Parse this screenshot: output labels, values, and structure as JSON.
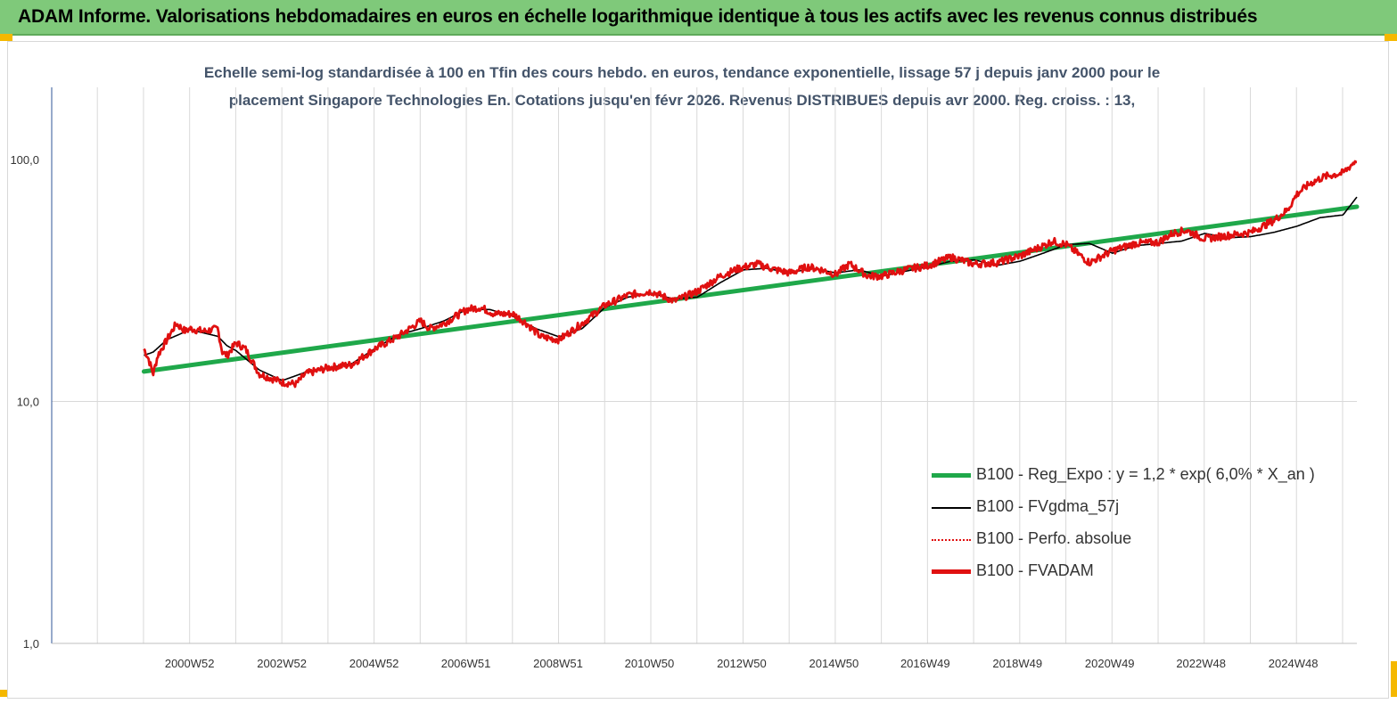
{
  "banner": {
    "title": "ADAM Informe. Valorisations hebdomadaires en euros en échelle logarithmique identique à tous les actifs avec les revenus connus distribués"
  },
  "chart_data": {
    "type": "line",
    "title": "",
    "subtitle_line1": "Echelle semi-log standardisée à 100 en Tfin des cours hebdo. en euros, tendance exponentielle, lissage 57 j depuis janv 2000 pour le",
    "subtitle_line2": "placement Singapore Technologies En. Cotations jusqu'en févr 2026. Revenus DISTRIBUES depuis avr 2000. Reg. croiss. : 13,",
    "y_scale": "log",
    "ylim": [
      1,
      200
    ],
    "y_ticks": [
      "1,0",
      "10,0",
      "100,0"
    ],
    "y_tick_values": [
      1,
      10,
      100
    ],
    "x_range": [
      1998.0,
      2026.3
    ],
    "x_ticks": [
      "2000W52",
      "2002W52",
      "2004W52",
      "2006W51",
      "2008W51",
      "2010W50",
      "2012W50",
      "2014W50",
      "2016W49",
      "2018W49",
      "2020W49",
      "2022W48",
      "2024W48"
    ],
    "x_tick_values": [
      2000.99,
      2002.99,
      2004.99,
      2006.98,
      2008.98,
      2010.96,
      2012.96,
      2014.96,
      2016.94,
      2018.94,
      2020.94,
      2022.92,
      2024.92
    ],
    "legend_position": "bottom-right",
    "grid": "vertical",
    "series": [
      {
        "name": "B100 - Reg_Expo : y = 1,2 * exp( 6,0% *  X_an )",
        "color": "#1fa84a",
        "style": "thick",
        "x": [
          2000.0,
          2026.3
        ],
        "y": [
          13.3,
          63.8
        ]
      },
      {
        "name": "B100 - FVgdma_57j",
        "color": "#000000",
        "style": "thin",
        "x": [
          2000.0,
          2000.2,
          2000.5,
          2001.0,
          2001.6,
          2001.8,
          2002.0,
          2002.5,
          2003.0,
          2003.5,
          2004.0,
          2004.5,
          2005.0,
          2005.5,
          2006.0,
          2006.5,
          2007.0,
          2007.5,
          2008.0,
          2008.5,
          2009.0,
          2009.5,
          2010.0,
          2010.5,
          2011.0,
          2011.5,
          2012.0,
          2012.5,
          2013.0,
          2013.5,
          2014.0,
          2014.5,
          2015.0,
          2015.5,
          2016.0,
          2016.5,
          2017.0,
          2017.5,
          2018.0,
          2018.5,
          2019.0,
          2019.5,
          2020.0,
          2020.5,
          2021.0,
          2021.5,
          2022.0,
          2022.5,
          2023.0,
          2023.5,
          2024.0,
          2024.5,
          2025.0,
          2025.5,
          2026.0,
          2026.3
        ],
        "y": [
          15.5,
          16.0,
          18.0,
          19.8,
          18.6,
          17.0,
          16.2,
          13.5,
          12.2,
          13.2,
          13.8,
          14.3,
          16.5,
          18.8,
          20.0,
          21.5,
          24.0,
          24.0,
          22.5,
          20.0,
          18.5,
          20.0,
          24.5,
          27.0,
          28.0,
          26.5,
          27.0,
          31.0,
          35.0,
          35.5,
          34.0,
          35.5,
          34.0,
          35.0,
          33.0,
          34.5,
          36.0,
          38.0,
          38.5,
          36.5,
          38.0,
          41.0,
          44.5,
          45.0,
          41.0,
          44.0,
          45.0,
          46.0,
          49.5,
          47.5,
          48.0,
          50.0,
          53.0,
          57.5,
          59.0,
          70.0
        ]
      },
      {
        "name": "B100 - Perfo. absolue",
        "color": "#e01010",
        "style": "dotted"
      },
      {
        "name": "B100 - FVADAM",
        "color": "#e01010",
        "style": "thick",
        "x": [
          2000.0,
          2000.1,
          2000.2,
          2000.3,
          2000.5,
          2000.7,
          2000.9,
          2001.0,
          2001.3,
          2001.6,
          2001.7,
          2001.8,
          2002.0,
          2002.2,
          2002.5,
          2003.0,
          2003.3,
          2003.5,
          2004.0,
          2004.5,
          2005.0,
          2005.5,
          2006.0,
          2006.2,
          2006.5,
          2007.0,
          2007.3,
          2007.6,
          2008.0,
          2008.3,
          2008.6,
          2009.0,
          2009.5,
          2010.0,
          2010.5,
          2011.0,
          2011.5,
          2012.0,
          2012.5,
          2012.9,
          2013.3,
          2013.7,
          2014.0,
          2014.4,
          2014.7,
          2015.0,
          2015.3,
          2015.7,
          2016.0,
          2016.5,
          2017.0,
          2017.5,
          2018.0,
          2018.5,
          2019.0,
          2019.5,
          2019.7,
          2020.0,
          2020.5,
          2021.0,
          2021.5,
          2022.0,
          2022.3,
          2022.6,
          2023.0,
          2023.5,
          2024.0,
          2024.5,
          2024.8,
          2025.0,
          2025.3,
          2025.6,
          2026.0,
          2026.3
        ],
        "y": [
          16.5,
          15.0,
          13.0,
          15.5,
          18.0,
          21.0,
          19.5,
          20.0,
          19.5,
          20.0,
          16.0,
          15.5,
          17.5,
          16.5,
          13.0,
          12.0,
          11.8,
          13.0,
          13.8,
          14.2,
          16.5,
          18.5,
          21.5,
          20.0,
          21.0,
          24.0,
          24.5,
          23.0,
          23.0,
          21.0,
          18.5,
          18.0,
          21.0,
          25.0,
          27.5,
          28.5,
          26.0,
          28.5,
          33.0,
          35.5,
          37.0,
          35.0,
          34.0,
          36.0,
          35.0,
          33.5,
          37.0,
          33.0,
          33.0,
          35.0,
          36.5,
          39.5,
          37.0,
          37.5,
          40.0,
          44.0,
          46.0,
          44.5,
          37.5,
          42.0,
          45.0,
          45.5,
          49.5,
          51.0,
          47.0,
          48.5,
          50.0,
          56.0,
          62.0,
          72.0,
          80.0,
          85.0,
          88.0,
          100.0
        ]
      }
    ]
  }
}
